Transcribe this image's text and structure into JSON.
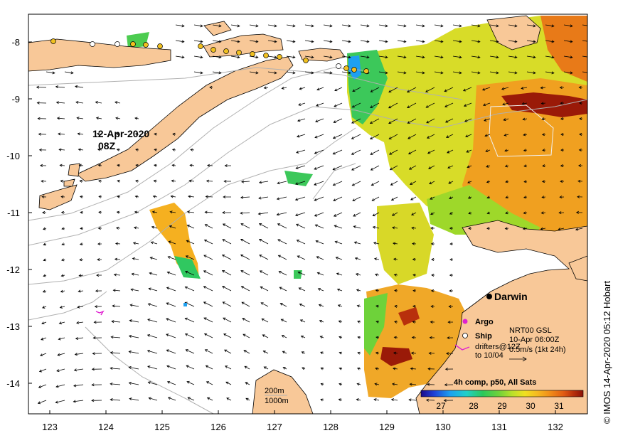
{
  "date_label": {
    "line1": "12-Apr-2020",
    "line2": "08Z"
  },
  "city": {
    "name": "Darwin"
  },
  "legend": {
    "argo": "Argo",
    "ship": "Ship",
    "product": "NRT00 GSL",
    "product_time": "10-Apr 06:00Z",
    "drifters_line1": "drifters@12Z",
    "drifters_line2": "to 10/04",
    "speed_scale": "0.5m/s (1kt 24h)",
    "speed_text": "0.5m/s (1kt 24h)"
  },
  "depth_legend": {
    "line1": "200m",
    "line2": "1000m"
  },
  "colorbar": {
    "title": "4h comp, p50, All Sats",
    "ticks": [
      "27",
      "28",
      "29",
      "30",
      "31"
    ],
    "colors": [
      "#1a0a8a",
      "#1f3fd6",
      "#1ea0f0",
      "#20d0c8",
      "#2cc85a",
      "#6fd23a",
      "#b8e02a",
      "#f0e020",
      "#f5b820",
      "#f08a18",
      "#e05a12",
      "#b8300c",
      "#8a1208"
    ]
  },
  "axes": {
    "x_ticks": [
      "123",
      "124",
      "125",
      "126",
      "127",
      "128",
      "129",
      "130",
      "131",
      "132"
    ],
    "y_ticks": [
      "-8",
      "-9",
      "-10",
      "-11",
      "-12",
      "-13",
      "-14"
    ]
  },
  "credit": "© IMOS 14-Apr-2020 05:12 Hobart",
  "colors": {
    "land": "#f8c898",
    "sea": "#ffffff",
    "isobath": "#b0b0b0",
    "argo": "#e020d0",
    "ship_marker": "#f0c020"
  }
}
